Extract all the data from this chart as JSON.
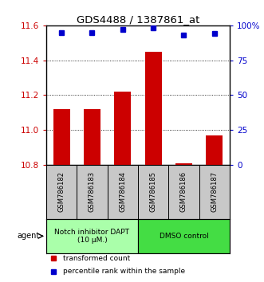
{
  "title": "GDS4488 / 1387861_at",
  "samples": [
    "GSM786182",
    "GSM786183",
    "GSM786184",
    "GSM786185",
    "GSM786186",
    "GSM786187"
  ],
  "bar_values": [
    11.12,
    11.12,
    11.22,
    11.45,
    10.81,
    10.97
  ],
  "percentile_values": [
    95,
    95,
    97,
    98,
    93,
    94
  ],
  "ylim_left": [
    10.8,
    11.6
  ],
  "ylim_right": [
    0,
    100
  ],
  "yticks_left": [
    10.8,
    11.0,
    11.2,
    11.4,
    11.6
  ],
  "yticks_right": [
    0,
    25,
    50,
    75,
    100
  ],
  "bar_color": "#cc0000",
  "percentile_color": "#0000cc",
  "bar_width": 0.55,
  "groups": [
    {
      "label": "Notch inhibitor DAPT\n(10 μM.)",
      "samples_idx": [
        0,
        1,
        2
      ],
      "color": "#aaffaa"
    },
    {
      "label": "DMSO control",
      "samples_idx": [
        3,
        4,
        5
      ],
      "color": "#44dd44"
    }
  ],
  "agent_label": "agent",
  "legend_bar_label": "transformed count",
  "legend_pct_label": "percentile rank within the sample",
  "label_area_bg": "#c8c8c8",
  "base_value": 10.8
}
